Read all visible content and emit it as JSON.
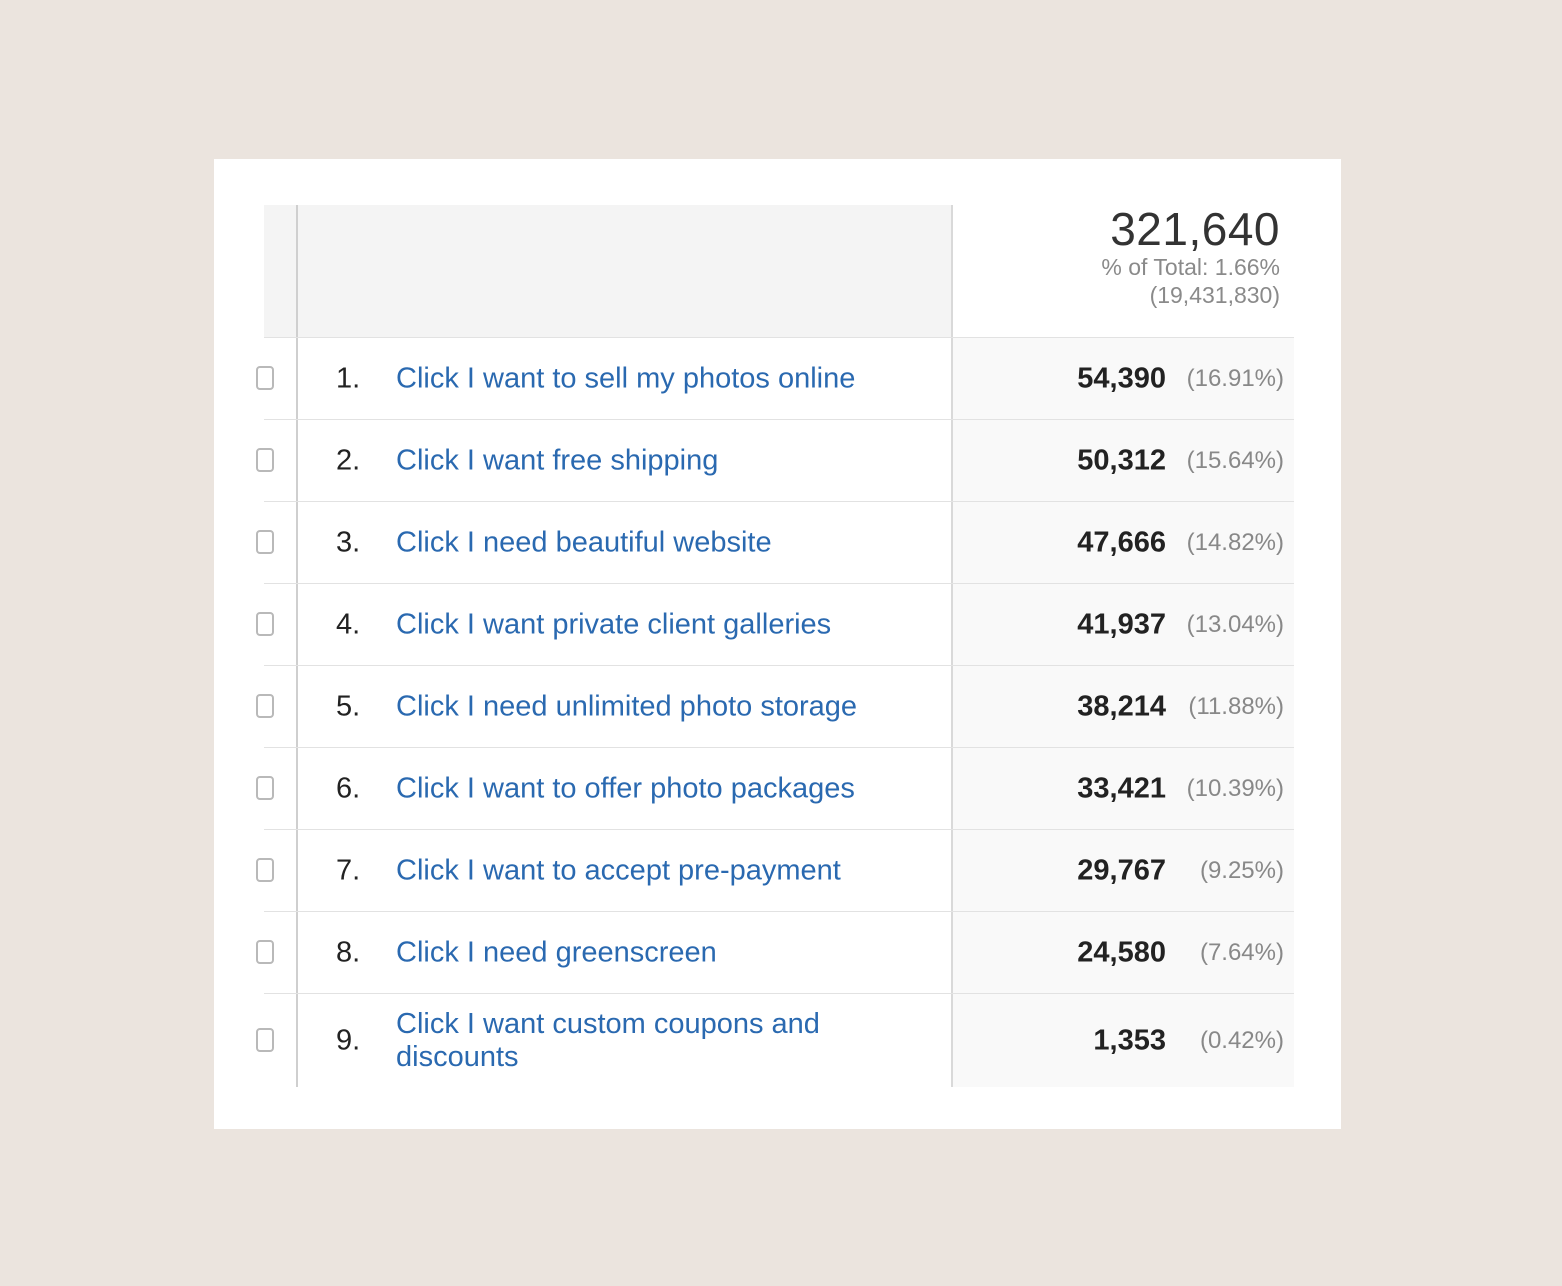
{
  "summary": {
    "total": "321,640",
    "pct_of_total": "% of Total: 1.66%",
    "grand_total": "(19,431,830)"
  },
  "rows": [
    {
      "rank": "1.",
      "label": "Click I want to sell my photos online",
      "value": "54,390",
      "pct": "(16.91%)"
    },
    {
      "rank": "2.",
      "label": "Click I want free shipping",
      "value": "50,312",
      "pct": "(15.64%)"
    },
    {
      "rank": "3.",
      "label": "Click I need beautiful website",
      "value": "47,666",
      "pct": "(14.82%)"
    },
    {
      "rank": "4.",
      "label": "Click I want private client galleries",
      "value": "41,937",
      "pct": "(13.04%)"
    },
    {
      "rank": "5.",
      "label": "Click I need unlimited photo storage",
      "value": "38,214",
      "pct": "(11.88%)"
    },
    {
      "rank": "6.",
      "label": "Click I want to offer photo packages",
      "value": "33,421",
      "pct": "(10.39%)"
    },
    {
      "rank": "7.",
      "label": "Click I want to accept pre-payment",
      "value": "29,767",
      "pct": "(9.25%)"
    },
    {
      "rank": "8.",
      "label": "Click I need greenscreen",
      "value": "24,580",
      "pct": "(7.64%)"
    },
    {
      "rank": "9.",
      "label": "Click I want custom coupons and discounts",
      "value": "1,353",
      "pct": "(0.42%)"
    }
  ]
}
